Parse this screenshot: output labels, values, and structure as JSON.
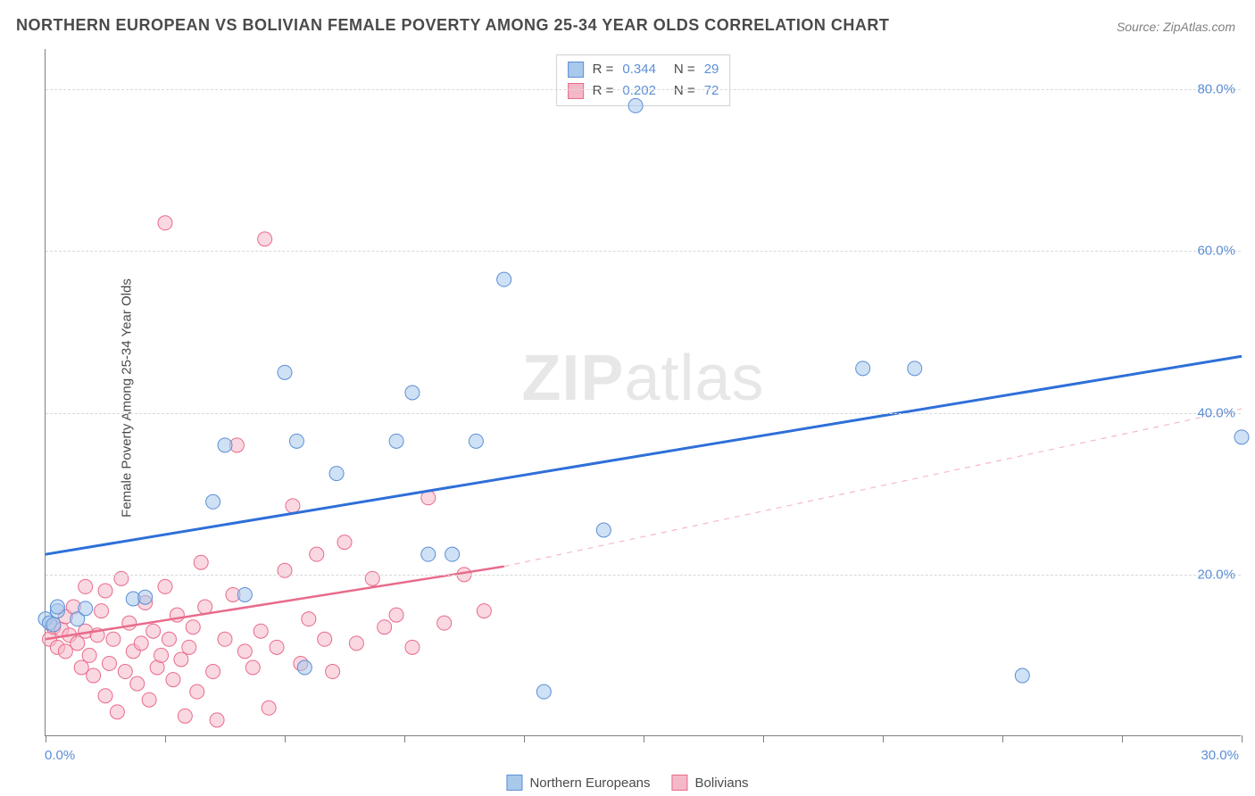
{
  "title": "NORTHERN EUROPEAN VS BOLIVIAN FEMALE POVERTY AMONG 25-34 YEAR OLDS CORRELATION CHART",
  "source": "Source: ZipAtlas.com",
  "ylabel": "Female Poverty Among 25-34 Year Olds",
  "watermark_zip": "ZIP",
  "watermark_atlas": "atlas",
  "chart": {
    "type": "scatter",
    "xlim": [
      0.0,
      30.0
    ],
    "ylim": [
      0.0,
      85.0
    ],
    "xlim_labels": [
      "0.0%",
      "30.0%"
    ],
    "ytick_positions": [
      20.0,
      40.0,
      60.0,
      80.0
    ],
    "ytick_labels": [
      "20.0%",
      "40.0%",
      "60.0%",
      "80.0%"
    ],
    "xtick_positions": [
      0,
      3,
      6,
      9,
      12,
      15,
      18,
      21,
      24,
      27,
      30
    ],
    "grid_color": "#d8d8d8",
    "axis_color": "#808080",
    "background_color": "#ffffff",
    "label_fontsize": 15,
    "title_fontsize": 18,
    "tick_color": "#5b8fd6",
    "marker_radius": 8,
    "marker_opacity": 0.55,
    "series": [
      {
        "name": "Northern Europeans",
        "color_fill": "#a8c8ec",
        "color_stroke": "#5b8fd6",
        "R": "0.344",
        "N": "29",
        "points": [
          [
            0.0,
            14.5
          ],
          [
            0.1,
            14.0
          ],
          [
            0.2,
            13.8
          ],
          [
            0.3,
            15.5
          ],
          [
            0.3,
            16.0
          ],
          [
            0.8,
            14.5
          ],
          [
            1.0,
            15.8
          ],
          [
            2.2,
            17.0
          ],
          [
            2.5,
            17.2
          ],
          [
            4.2,
            29.0
          ],
          [
            4.5,
            36.0
          ],
          [
            5.0,
            17.5
          ],
          [
            6.0,
            45.0
          ],
          [
            6.3,
            36.5
          ],
          [
            6.5,
            8.5
          ],
          [
            7.3,
            32.5
          ],
          [
            8.8,
            36.5
          ],
          [
            9.2,
            42.5
          ],
          [
            9.6,
            22.5
          ],
          [
            10.2,
            22.5
          ],
          [
            10.8,
            36.5
          ],
          [
            11.5,
            56.5
          ],
          [
            12.5,
            5.5
          ],
          [
            14.0,
            25.5
          ],
          [
            14.8,
            78.0
          ],
          [
            20.5,
            45.5
          ],
          [
            21.8,
            45.5
          ],
          [
            24.5,
            7.5
          ],
          [
            30.0,
            37.0
          ]
        ],
        "trend": {
          "y0": 22.5,
          "y1": 47.0,
          "x0": 0.0,
          "x1": 30.0,
          "dash": "none",
          "width": 3,
          "color": "#2e6fd9"
        }
      },
      {
        "name": "Bolivians",
        "color_fill": "#f5b8c8",
        "color_stroke": "#e86b8a",
        "R": "0.202",
        "N": "72",
        "points": [
          [
            0.1,
            12.0
          ],
          [
            0.2,
            13.5
          ],
          [
            0.3,
            11.0
          ],
          [
            0.4,
            13.2
          ],
          [
            0.5,
            10.5
          ],
          [
            0.5,
            14.8
          ],
          [
            0.6,
            12.5
          ],
          [
            0.7,
            16.0
          ],
          [
            0.8,
            11.5
          ],
          [
            0.9,
            8.5
          ],
          [
            1.0,
            13.0
          ],
          [
            1.0,
            18.5
          ],
          [
            1.1,
            10.0
          ],
          [
            1.2,
            7.5
          ],
          [
            1.3,
            12.5
          ],
          [
            1.4,
            15.5
          ],
          [
            1.5,
            5.0
          ],
          [
            1.5,
            18.0
          ],
          [
            1.6,
            9.0
          ],
          [
            1.7,
            12.0
          ],
          [
            1.8,
            3.0
          ],
          [
            1.9,
            19.5
          ],
          [
            2.0,
            8.0
          ],
          [
            2.1,
            14.0
          ],
          [
            2.2,
            10.5
          ],
          [
            2.3,
            6.5
          ],
          [
            2.4,
            11.5
          ],
          [
            2.5,
            16.5
          ],
          [
            2.6,
            4.5
          ],
          [
            2.7,
            13.0
          ],
          [
            2.8,
            8.5
          ],
          [
            2.9,
            10.0
          ],
          [
            3.0,
            18.5
          ],
          [
            3.0,
            63.5
          ],
          [
            3.1,
            12.0
          ],
          [
            3.2,
            7.0
          ],
          [
            3.3,
            15.0
          ],
          [
            3.4,
            9.5
          ],
          [
            3.5,
            2.5
          ],
          [
            3.6,
            11.0
          ],
          [
            3.7,
            13.5
          ],
          [
            3.8,
            5.5
          ],
          [
            3.9,
            21.5
          ],
          [
            4.0,
            16.0
          ],
          [
            4.2,
            8.0
          ],
          [
            4.3,
            2.0
          ],
          [
            4.5,
            12.0
          ],
          [
            4.7,
            17.5
          ],
          [
            4.8,
            36.0
          ],
          [
            5.0,
            10.5
          ],
          [
            5.2,
            8.5
          ],
          [
            5.4,
            13.0
          ],
          [
            5.5,
            61.5
          ],
          [
            5.6,
            3.5
          ],
          [
            5.8,
            11.0
          ],
          [
            6.0,
            20.5
          ],
          [
            6.2,
            28.5
          ],
          [
            6.4,
            9.0
          ],
          [
            6.6,
            14.5
          ],
          [
            6.8,
            22.5
          ],
          [
            7.0,
            12.0
          ],
          [
            7.2,
            8.0
          ],
          [
            7.5,
            24.0
          ],
          [
            7.8,
            11.5
          ],
          [
            8.2,
            19.5
          ],
          [
            8.5,
            13.5
          ],
          [
            8.8,
            15.0
          ],
          [
            9.2,
            11.0
          ],
          [
            9.6,
            29.5
          ],
          [
            10.0,
            14.0
          ],
          [
            10.5,
            20.0
          ],
          [
            11.0,
            15.5
          ]
        ],
        "trend_solid": {
          "y0": 12.0,
          "y1": 21.0,
          "x0": 0.0,
          "x1": 11.5,
          "color": "#e86b8a",
          "width": 2.5
        },
        "trend_dash": {
          "y0": 21.0,
          "y1": 40.5,
          "x0": 11.5,
          "x1": 30.0,
          "color": "#f5b8c8",
          "width": 1.2
        }
      }
    ]
  },
  "legend_bottom": [
    {
      "label": "Northern Europeans",
      "fill": "#a8c8ec",
      "stroke": "#5b8fd6"
    },
    {
      "label": "Bolivians",
      "fill": "#f5b8c8",
      "stroke": "#e86b8a"
    }
  ]
}
